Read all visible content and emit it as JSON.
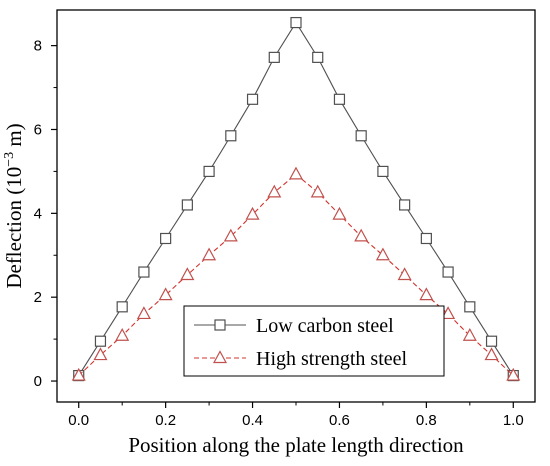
{
  "chart_data": {
    "type": "line",
    "title": "",
    "xlabel": "Position along the plate length direction",
    "ylabel_prefix": "Deflection (10",
    "ylabel_exponent": "−3",
    "ylabel_suffix": " m)",
    "xlim": [
      -0.05,
      1.05
    ],
    "ylim": [
      -0.5,
      8.85
    ],
    "xticks": [
      0.0,
      0.2,
      0.4,
      0.6,
      0.8,
      1.0
    ],
    "xtick_labels": [
      "0.0",
      "0.2",
      "0.4",
      "0.6",
      "0.8",
      "1.0"
    ],
    "yticks": [
      0,
      2,
      4,
      6,
      8
    ],
    "ytick_labels": [
      "0",
      "2",
      "4",
      "6",
      "8"
    ],
    "grid": false,
    "legend_position": "bottom-center",
    "x": [
      0.0,
      0.05,
      0.1,
      0.15,
      0.2,
      0.25,
      0.3,
      0.35,
      0.4,
      0.45,
      0.5,
      0.55,
      0.6,
      0.65,
      0.7,
      0.75,
      0.8,
      0.85,
      0.9,
      0.95,
      1.0
    ],
    "series": [
      {
        "name": "Low carbon steel",
        "color": "#505050",
        "marker": "square",
        "line_style": "solid",
        "values": [
          0.13,
          0.95,
          1.77,
          2.6,
          3.4,
          4.2,
          5.0,
          5.85,
          6.72,
          7.72,
          8.55,
          7.72,
          6.72,
          5.85,
          5.0,
          4.2,
          3.4,
          2.6,
          1.77,
          0.95,
          0.13
        ]
      },
      {
        "name": "High strength steel",
        "color": "#d0342c",
        "line_color": "#d0342c",
        "marker_color": "#c0504d",
        "marker": "triangle",
        "line_style": "dashed",
        "values": [
          0.13,
          0.62,
          1.08,
          1.6,
          2.05,
          2.53,
          3.0,
          3.45,
          3.97,
          4.5,
          4.93,
          4.5,
          3.97,
          3.45,
          3.0,
          2.53,
          2.05,
          1.6,
          1.08,
          0.62,
          0.13
        ]
      }
    ]
  }
}
